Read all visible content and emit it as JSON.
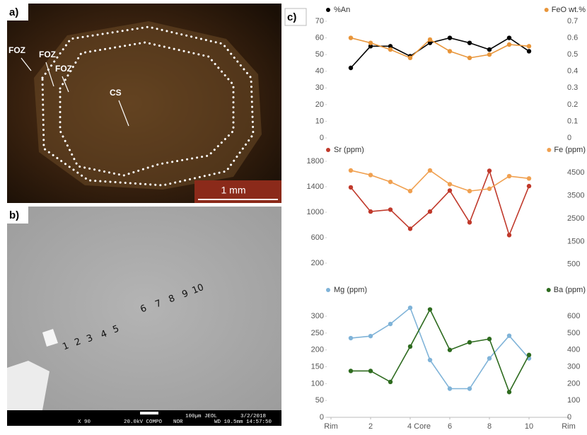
{
  "panels": {
    "a": {
      "label": "a)",
      "annotations": [
        "FOZ",
        "FOZ",
        "FOZ",
        "CS"
      ],
      "scale": "1 mm"
    },
    "b": {
      "label": "b)",
      "points": [
        "1",
        "2",
        "3",
        "4",
        "5",
        "6",
        "7",
        "8",
        "9",
        "10"
      ],
      "footer": [
        "X 90",
        "20.0kV COMPO",
        "NOR",
        "100µm JEOL",
        "3/2/2018",
        "WD 10.5mm 14:57:50"
      ]
    },
    "c": {
      "label": "c)"
    }
  },
  "chart_data": [
    {
      "type": "line",
      "x": [
        1,
        2,
        3,
        4,
        5,
        6,
        7,
        8,
        9,
        10
      ],
      "xlim": [
        0,
        12
      ],
      "ylim": [
        0,
        70
      ],
      "yticks": [
        0,
        10,
        20,
        30,
        40,
        50,
        60,
        70
      ],
      "y2lim": [
        0,
        0.7
      ],
      "y2ticks": [
        0,
        0.1,
        0.2,
        0.3,
        0.4,
        0.5,
        0.6,
        0.7
      ],
      "series": [
        {
          "name": "%An",
          "color": "#000000",
          "values": [
            42,
            55,
            55,
            49,
            57,
            60,
            57,
            53,
            60,
            52
          ]
        },
        {
          "name": "FeO wt.%",
          "color": "#e8953a",
          "axis": "y2",
          "values": [
            0.6,
            0.57,
            0.53,
            0.48,
            0.59,
            0.52,
            0.48,
            0.5,
            0.56,
            0.55
          ]
        }
      ]
    },
    {
      "type": "line",
      "x": [
        1,
        2,
        3,
        4,
        5,
        6,
        7,
        8,
        9,
        10
      ],
      "xlim": [
        0,
        12
      ],
      "ylim": [
        0,
        1800
      ],
      "yticks": [
        200,
        600,
        1000,
        1400,
        1800
      ],
      "y2lim": [
        0,
        5000
      ],
      "y2ticks": [
        500,
        1500,
        2500,
        3500,
        4500
      ],
      "series": [
        {
          "name": "Sr (ppm)",
          "color": "#c0392b",
          "values": [
            1390,
            1010,
            1040,
            740,
            1010,
            1340,
            840,
            1650,
            640,
            1410
          ]
        },
        {
          "name": "Fe (ppm)",
          "color": "#f0a050",
          "axis": "y2",
          "values": [
            4600,
            4400,
            4100,
            3700,
            4600,
            4000,
            3700,
            3800,
            4350,
            4250
          ]
        }
      ]
    },
    {
      "type": "line",
      "x": [
        1,
        2,
        3,
        4,
        5,
        6,
        7,
        8,
        9,
        10
      ],
      "xlim": [
        0,
        12
      ],
      "xticks": [
        {
          "value": 0,
          "label": "Rim"
        },
        2,
        {
          "value": 4,
          "label": "4 Core"
        },
        6,
        8,
        10,
        {
          "value": 12,
          "label": "Rim"
        }
      ],
      "ylim": [
        0,
        340
      ],
      "yticks": [
        0,
        50,
        100,
        150,
        200,
        250,
        300
      ],
      "y2lim": [
        0,
        680
      ],
      "y2ticks": [
        0,
        100,
        200,
        300,
        400,
        500,
        600
      ],
      "series": [
        {
          "name": "Mg (ppm)",
          "color": "#7fb3d8",
          "values": [
            235,
            241,
            277,
            325,
            170,
            85,
            85,
            175,
            242,
            175
          ]
        },
        {
          "name": "Ba (ppm)",
          "color": "#2e6b1f",
          "axis": "y2",
          "values": [
            275,
            275,
            210,
            420,
            640,
            400,
            445,
            465,
            150,
            370
          ]
        }
      ]
    }
  ]
}
